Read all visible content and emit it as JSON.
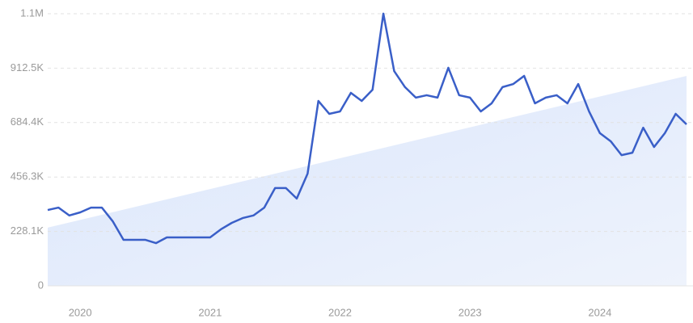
{
  "chart_data": {
    "type": "line",
    "x": [
      2019.75,
      2019.8333,
      2019.9167,
      2020,
      2020.0833,
      2020.1667,
      2020.25,
      2020.3333,
      2020.4167,
      2020.5,
      2020.5833,
      2020.6667,
      2020.75,
      2020.8333,
      2020.9167,
      2021,
      2021.0833,
      2021.1667,
      2021.25,
      2021.3333,
      2021.4167,
      2021.5,
      2021.5833,
      2021.6667,
      2021.75,
      2021.8333,
      2021.9167,
      2022,
      2022.0833,
      2022.1667,
      2022.25,
      2022.3333,
      2022.4167,
      2022.5,
      2022.5833,
      2022.6667,
      2022.75,
      2022.8333,
      2022.9167,
      2023,
      2023.0833,
      2023.1667,
      2023.25,
      2023.3333,
      2023.4167,
      2023.5,
      2023.5833,
      2023.6667,
      2023.75,
      2023.8333,
      2023.9167,
      2024,
      2024.0833,
      2024.1667,
      2024.25,
      2024.3333,
      2024.4167,
      2024.5,
      2024.5833,
      2024.6667
    ],
    "series": [
      {
        "color": "#3a5fc8",
        "values": [
          318000,
          328000,
          295000,
          308000,
          328000,
          328000,
          271000,
          193000,
          193000,
          193000,
          179000,
          203000,
          203000,
          203000,
          203000,
          203000,
          237000,
          264000,
          284000,
          295000,
          328000,
          410000,
          410000,
          366000,
          470000,
          775000,
          721000,
          731000,
          809000,
          775000,
          822000,
          1141000,
          900000,
          833000,
          789000,
          799000,
          789000,
          914000,
          799000,
          789000,
          731000,
          765000,
          833000,
          846000,
          880000,
          765000,
          789000,
          799000,
          765000,
          846000,
          731000,
          640000,
          606000,
          548000,
          558000,
          663000,
          582000,
          640000,
          721000,
          677000
        ]
      }
    ],
    "trend": {
      "color": "#dce8fb",
      "values": [
        244000,
        880000
      ]
    },
    "xlim": [
      2019.75,
      2024.6667
    ],
    "xticks": [
      2020,
      2021,
      2022,
      2023,
      2024
    ],
    "ylim": [
      0,
      1140625
    ],
    "yticks": [
      0,
      {
        "value": 228125,
        "label": "228.1K"
      },
      {
        "value": 456250,
        "label": "456.3K"
      },
      {
        "value": 684375,
        "label": "684.4K"
      },
      {
        "value": 912500,
        "label": "912.5K"
      },
      {
        "value": 1140625,
        "label": "1.1M"
      }
    ],
    "grid": true
  }
}
